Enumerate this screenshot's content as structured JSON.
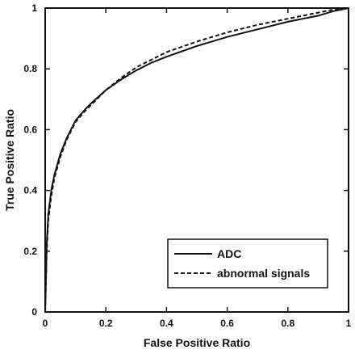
{
  "chart_data": {
    "type": "line",
    "xlabel": "False Positive Ratio",
    "ylabel": "True Positive Ratio",
    "xlim": [
      0,
      1
    ],
    "ylim": [
      0,
      1
    ],
    "xticks": [
      "0",
      "0.2",
      "0.4",
      "0.6",
      "0.8",
      "1"
    ],
    "yticks": [
      "0",
      "0.2",
      "0.4",
      "0.6",
      "0.8",
      "1"
    ],
    "grid": false,
    "legend_position": "bottom-right",
    "series": [
      {
        "name": "ADC",
        "line_style": "solid",
        "x": [
          0,
          0.005,
          0.01,
          0.02,
          0.03,
          0.05,
          0.07,
          0.1,
          0.13,
          0.15,
          0.2,
          0.25,
          0.3,
          0.35,
          0.4,
          0.5,
          0.6,
          0.7,
          0.8,
          0.9,
          0.95,
          1.0
        ],
        "y": [
          0,
          0.22,
          0.32,
          0.4,
          0.45,
          0.52,
          0.57,
          0.63,
          0.665,
          0.685,
          0.73,
          0.765,
          0.795,
          0.82,
          0.84,
          0.875,
          0.905,
          0.93,
          0.955,
          0.975,
          0.99,
          1.0
        ]
      },
      {
        "name": "abnormal signals",
        "line_style": "dashed",
        "x": [
          0,
          0.005,
          0.01,
          0.02,
          0.03,
          0.05,
          0.07,
          0.1,
          0.13,
          0.15,
          0.2,
          0.25,
          0.3,
          0.35,
          0.4,
          0.5,
          0.6,
          0.7,
          0.8,
          0.9,
          0.95,
          1.0
        ],
        "y": [
          0,
          0.2,
          0.3,
          0.38,
          0.44,
          0.51,
          0.565,
          0.625,
          0.66,
          0.68,
          0.73,
          0.77,
          0.805,
          0.83,
          0.855,
          0.89,
          0.92,
          0.945,
          0.965,
          0.985,
          0.995,
          1.0
        ]
      }
    ]
  }
}
